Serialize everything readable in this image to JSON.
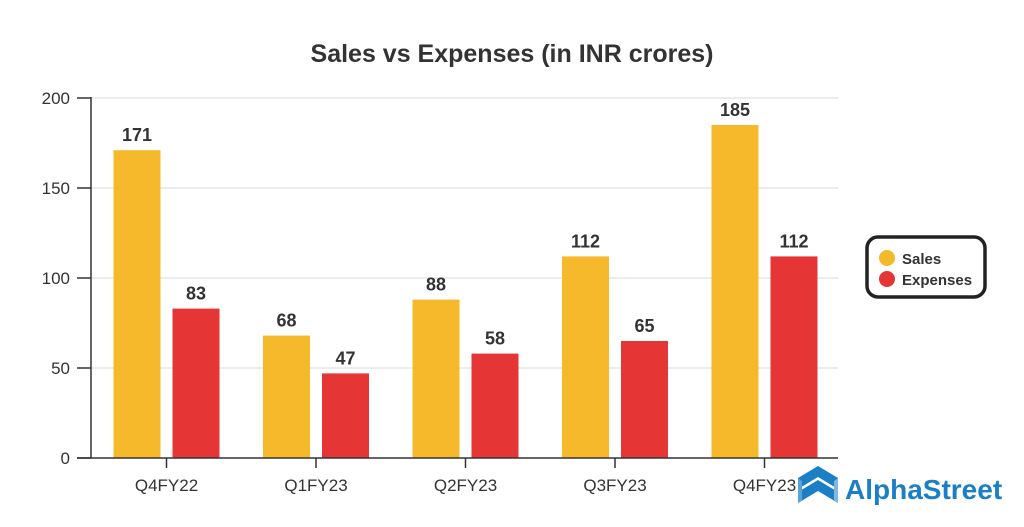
{
  "chart_data": {
    "type": "bar",
    "title": "Sales vs Expenses (in INR crores)",
    "xlabel": "",
    "ylabel": "",
    "categories": [
      "Q4FY22",
      "Q1FY23",
      "Q2FY23",
      "Q3FY23",
      "Q4FY23"
    ],
    "series": [
      {
        "name": "Sales",
        "color": "#f6b92b",
        "values": [
          171,
          68,
          88,
          112,
          185
        ],
        "labels": [
          "171",
          "68",
          "88",
          "112",
          "185"
        ]
      },
      {
        "name": "Expenses",
        "color": "#e53535",
        "values": [
          83,
          47,
          58,
          65,
          112
        ],
        "labels": [
          "83",
          "47",
          "58",
          "65",
          "112"
        ]
      }
    ],
    "ylim": [
      0,
      200
    ],
    "yticks": [
      0,
      50,
      100,
      150,
      200
    ],
    "ytick_labels": [
      "0",
      "50",
      "100",
      "150",
      "200"
    ],
    "grid": true,
    "legend_position": "right"
  },
  "branding": {
    "logo_text": "AlphaStreet",
    "logo_color": "#1a7fc4"
  }
}
